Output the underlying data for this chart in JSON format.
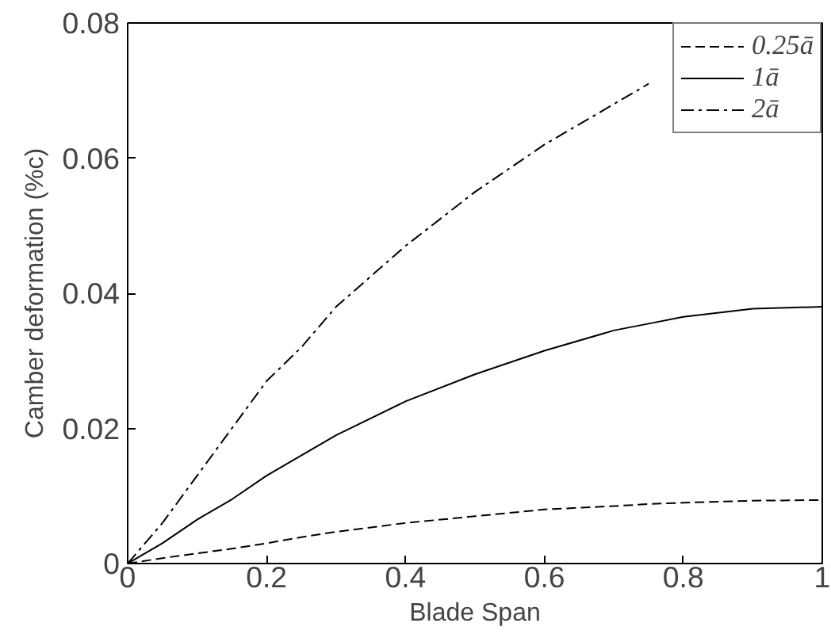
{
  "chart_data": {
    "type": "line",
    "xlabel": "Blade Span",
    "ylabel": "Camber deformation (%c)",
    "xlim": [
      0,
      1
    ],
    "ylim": [
      0,
      0.08
    ],
    "xticks": [
      0,
      0.2,
      0.4,
      0.6,
      0.8,
      1
    ],
    "yticks": [
      0,
      0.02,
      0.04,
      0.06,
      0.08
    ],
    "grid": false,
    "legend": "top right",
    "marker": "none",
    "x": [
      0,
      0.05,
      0.1,
      0.15,
      0.2,
      0.25,
      0.3,
      0.4,
      0.5,
      0.6,
      0.7,
      0.75,
      0.8,
      0.9,
      1.0
    ],
    "series": [
      {
        "name": "0.25ā",
        "color": "#000000",
        "line_style": "dashed",
        "values": [
          0,
          0.0008,
          0.0015,
          0.0022,
          0.003,
          0.0039,
          0.0047,
          0.006,
          0.007,
          0.008,
          0.0085,
          0.0088,
          0.009,
          0.0093,
          0.0094
        ]
      },
      {
        "name": "1ā",
        "color": "#000000",
        "line_style": "solid",
        "values": [
          0,
          0.003,
          0.0065,
          0.0095,
          0.013,
          0.016,
          0.019,
          0.024,
          0.028,
          0.0315,
          0.0345,
          0.0355,
          0.0365,
          0.0377,
          0.038
        ]
      },
      {
        "name": "2ā",
        "color": "#000000",
        "line_style": "dashdot",
        "values": [
          0,
          0.006,
          0.013,
          0.02,
          0.027,
          0.032,
          0.038,
          0.047,
          0.055,
          0.062,
          0.068,
          0.071,
          null,
          null,
          null
        ]
      }
    ]
  }
}
